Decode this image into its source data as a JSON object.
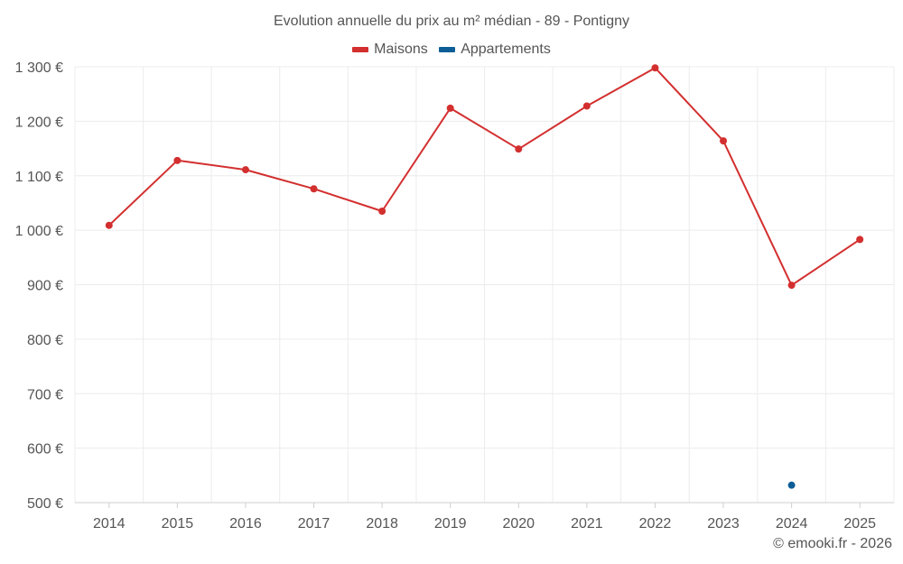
{
  "chart_data": {
    "type": "line",
    "title": "Evolution annuelle du prix au m² médian - 89 - Pontigny",
    "categories": [
      "2014",
      "2015",
      "2016",
      "2017",
      "2018",
      "2019",
      "2020",
      "2021",
      "2022",
      "2023",
      "2024",
      "2025"
    ],
    "series": [
      {
        "name": "Maisons",
        "color": "#d32f2f",
        "values": [
          1009,
          1128,
          1111,
          1076,
          1035,
          1224,
          1149,
          1228,
          1298,
          1164,
          899,
          983
        ]
      },
      {
        "name": "Appartements",
        "color": "#0d5e96",
        "values": [
          null,
          null,
          null,
          null,
          null,
          null,
          null,
          null,
          null,
          null,
          532,
          null
        ]
      }
    ],
    "ylim": [
      500,
      1300
    ],
    "yticks": [
      500,
      600,
      700,
      800,
      900,
      1000,
      1100,
      1200,
      1300
    ],
    "ytick_labels": [
      "500 €",
      "600 €",
      "700 €",
      "800 €",
      "900 €",
      "1 000 €",
      "1 100 €",
      "1 200 €",
      "1 300 €"
    ],
    "xlabel": "",
    "ylabel": "",
    "grid": true,
    "legend_position": "top-center"
  },
  "credit": "© emooki.fr - 2026"
}
